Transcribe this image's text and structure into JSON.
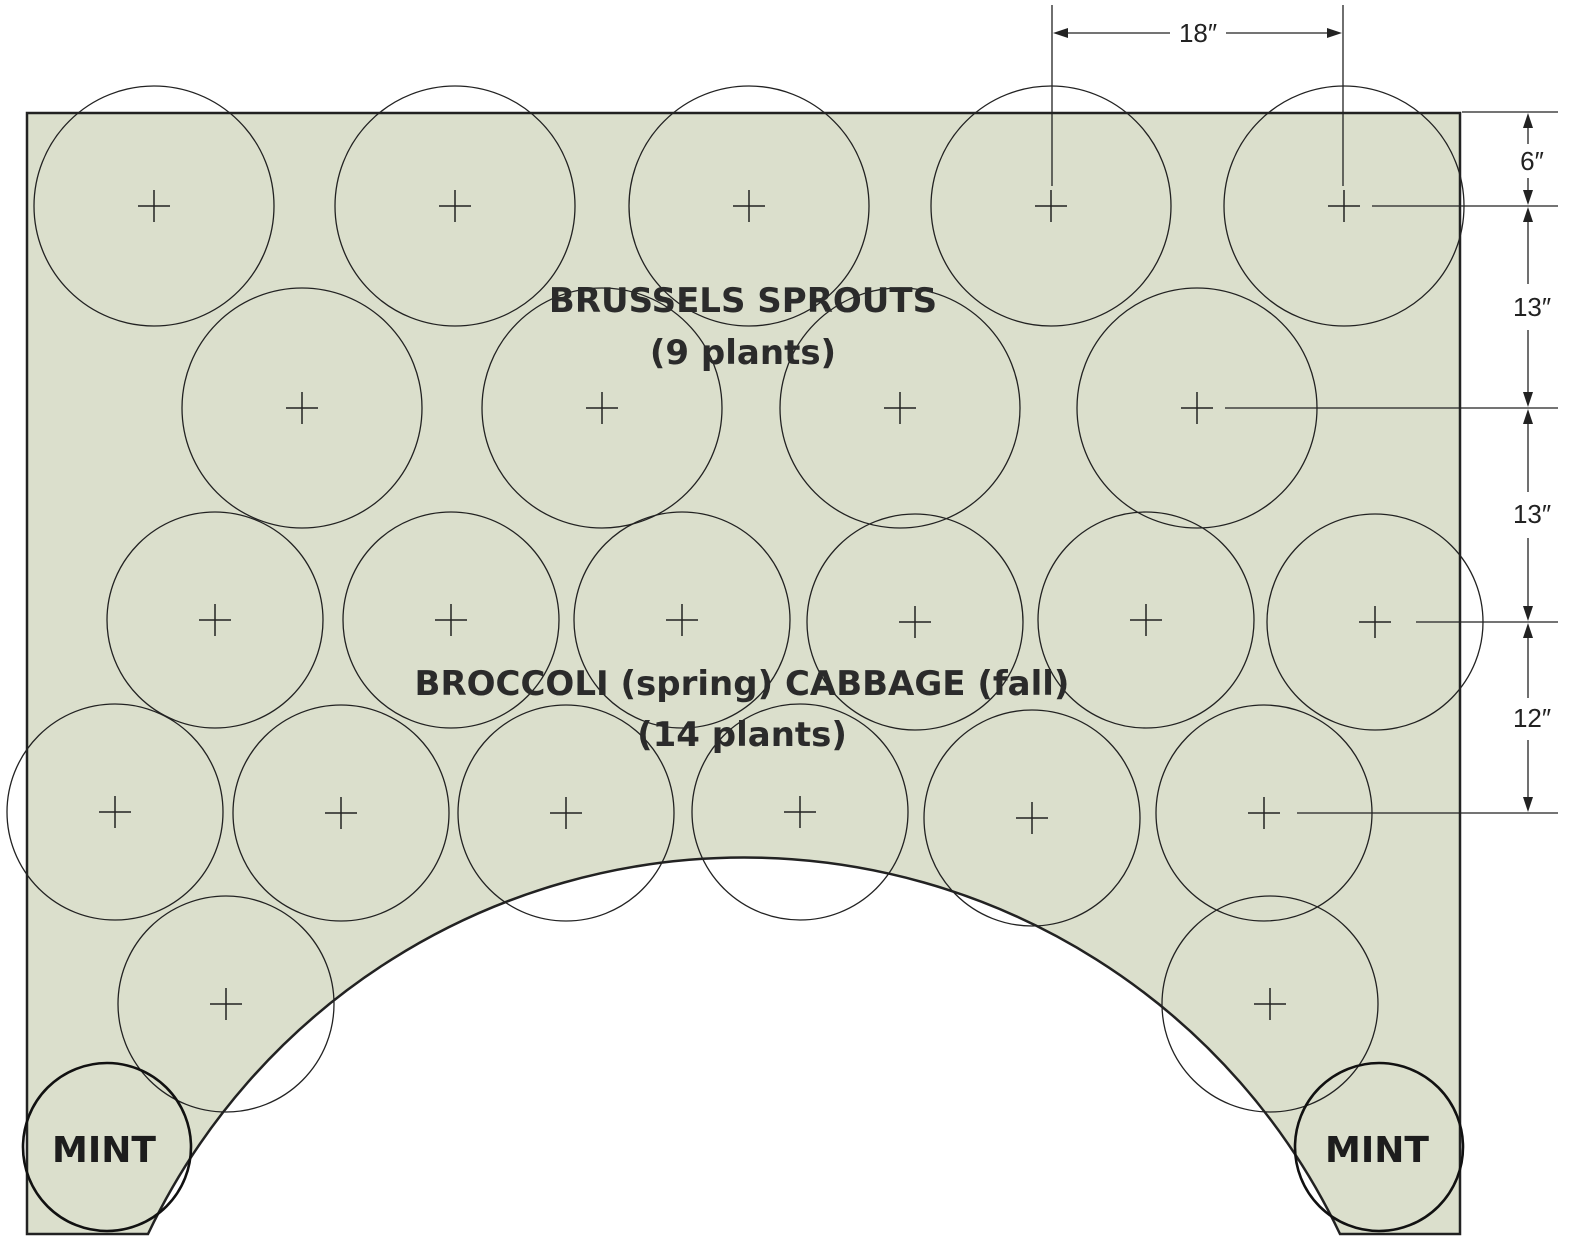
{
  "labels": {
    "brussels_line1": "BRUSSELS SPROUTS",
    "brussels_line2": "(9 plants)",
    "broccoli_line1": "BROCCOLI (spring)  CABBAGE (fall)",
    "broccoli_line2": "(14 plants)",
    "mint_left": "MINT",
    "mint_right": "MINT"
  },
  "dimensions": {
    "spacing_horizontal": "18″",
    "edge_offset": "6″",
    "row_gap_1": "13″",
    "row_gap_2": "13″",
    "row_gap_3": "12″"
  },
  "colors": {
    "bed_fill": "#dbdfcc",
    "outline": "#222222"
  }
}
